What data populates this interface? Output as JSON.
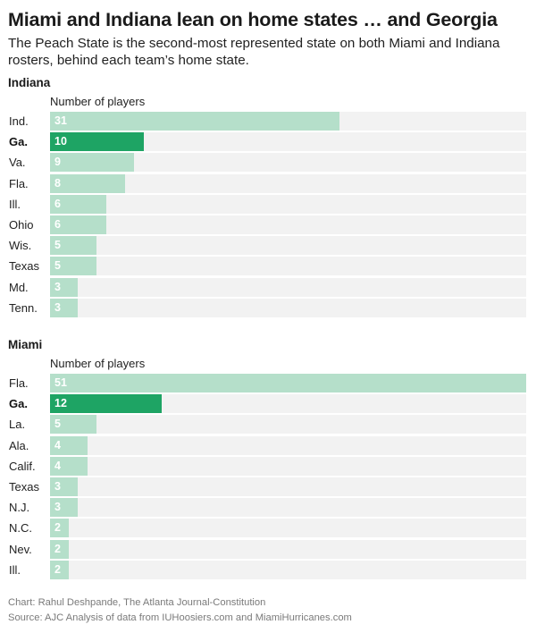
{
  "title": "Miami and Indiana lean on home states … and Georgia",
  "subtitle": "The Peach State is the second-most represented state on both Miami and Indiana rosters, behind each team’s home state.",
  "footer": {
    "credit": "Chart: Rahul Deshpande, The Atlanta Journal-Constitution",
    "source": "Source: AJC Analysis of data from IUHoosiers.com and MiamiHurricanes.com"
  },
  "colors": {
    "bar": "#b5dfca",
    "highlight": "#1ea464",
    "track": "#f2f2f2"
  },
  "chart_data": [
    {
      "type": "bar",
      "orientation": "horizontal",
      "title": "Indiana",
      "xlabel": "Number of players",
      "xlim": [
        0,
        51
      ],
      "categories": [
        "Ind.",
        "Ga.",
        "Va.",
        "Fla.",
        "Ill.",
        "Ohio",
        "Wis.",
        "Texas",
        "Md.",
        "Tenn."
      ],
      "values": [
        31,
        10,
        9,
        8,
        6,
        6,
        5,
        5,
        3,
        3
      ],
      "highlight": "Ga."
    },
    {
      "type": "bar",
      "orientation": "horizontal",
      "title": "Miami",
      "xlabel": "Number of players",
      "xlim": [
        0,
        51
      ],
      "categories": [
        "Fla.",
        "Ga.",
        "La.",
        "Ala.",
        "Calif.",
        "Texas",
        "N.J.",
        "N.C.",
        "Nev.",
        "Ill."
      ],
      "values": [
        51,
        12,
        5,
        4,
        4,
        3,
        3,
        2,
        2,
        2
      ],
      "highlight": "Ga."
    }
  ]
}
